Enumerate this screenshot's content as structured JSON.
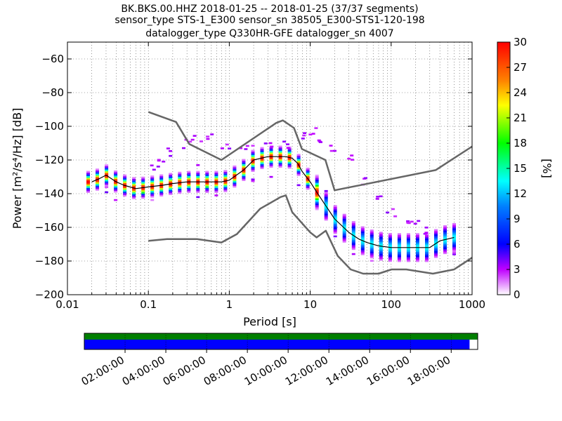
{
  "title_lines": [
    "BK.BKS.00.HHZ   2018-01-25 -- 2018-01-25  (37/37 segments)",
    "sensor_type STS-1_E300 sensor_sn 38505_E300-STS1-120-198",
    "datalogger_type Q330HR-GFE datalogger_sn 4007"
  ],
  "chart_data": {
    "type": "heatmap",
    "xlabel": "Period [s]",
    "ylabel": "Power [m²/s⁴/Hz] [dB]",
    "xscale": "log",
    "xlim": [
      0.01,
      1000
    ],
    "ylim": [
      -200,
      -50
    ],
    "grid": true,
    "x_ticks": [
      {
        "value": 0.01,
        "label": "0.01"
      },
      {
        "value": 0.1,
        "label": "0.1"
      },
      {
        "value": 1,
        "label": "1"
      },
      {
        "value": 10,
        "label": "10"
      },
      {
        "value": 100,
        "label": "100"
      },
      {
        "value": 1000,
        "label": "1000"
      }
    ],
    "y_ticks": [
      {
        "value": -60,
        "label": "−60"
      },
      {
        "value": -80,
        "label": "−80"
      },
      {
        "value": -100,
        "label": "−100"
      },
      {
        "value": -120,
        "label": "−120"
      },
      {
        "value": -140,
        "label": "−140"
      },
      {
        "value": -160,
        "label": "−160"
      },
      {
        "value": -180,
        "label": "−180"
      },
      {
        "value": -200,
        "label": "−200"
      }
    ],
    "colorbar": {
      "label": "[%]",
      "min": 0,
      "max": 30,
      "ticks": [
        "0",
        "3",
        "6",
        "9",
        "12",
        "15",
        "18",
        "21",
        "24",
        "27",
        "30"
      ]
    },
    "nlnm": {
      "name": "NLNM",
      "period": [
        0.1,
        0.17,
        0.4,
        0.8,
        1.24,
        2.4,
        4.3,
        5.0,
        6.0,
        10,
        12,
        15.6,
        21.9,
        31.6,
        45,
        70,
        101,
        154,
        328,
        600,
        1000
      ],
      "power": [
        -168,
        -167,
        -167,
        -169,
        -164,
        -149,
        -142,
        -141,
        -151,
        -163,
        -166,
        -162,
        -177,
        -185,
        -187.5,
        -187.5,
        -185,
        -185,
        -187.5,
        -185,
        -178
      ]
    },
    "nhnm": {
      "name": "NHNM",
      "period": [
        0.1,
        0.22,
        0.32,
        0.8,
        3.8,
        4.6,
        6.3,
        7.9,
        15.4,
        20,
        354.8,
        1000
      ],
      "power": [
        -91.5,
        -97.4,
        -110.5,
        -120,
        -98,
        -96.5,
        -101,
        -113.5,
        -120,
        -138,
        -126,
        -112
      ]
    },
    "mode": {
      "name": "mode",
      "period": [
        0.02,
        0.025,
        0.03,
        0.04,
        0.05,
        0.07,
        0.1,
        0.15,
        0.2,
        0.3,
        0.5,
        0.8,
        1,
        1.5,
        2,
        3,
        4,
        5,
        6,
        7,
        8,
        10,
        12,
        15,
        20,
        30,
        40,
        50,
        70,
        100,
        150,
        200,
        300,
        400,
        600
      ],
      "power": [
        -133,
        -131,
        -129,
        -133,
        -135,
        -137,
        -136,
        -135,
        -134,
        -133,
        -133,
        -133,
        -132,
        -126,
        -120,
        -118,
        -118,
        -118,
        -119,
        -122,
        -127,
        -133,
        -139,
        -146,
        -155,
        -163,
        -167,
        -169,
        -171,
        -172,
        -172,
        -172,
        -172,
        -168,
        -166
      ]
    },
    "time_axis": {
      "ticks": [
        "02:00:00",
        "04:00:00",
        "06:00:00",
        "08:00:00",
        "10:00:00",
        "12:00:00",
        "14:00:00",
        "16:00:00",
        "18:00:00"
      ],
      "tick_hours": [
        2,
        4,
        6,
        8,
        10,
        12,
        14,
        16,
        18
      ],
      "range_hours": [
        0,
        19.3
      ],
      "data_coverage_end_hour": 19.3,
      "psd_coverage_end_hour": 18.9,
      "colors": {
        "data": "#007f00",
        "psd": "#0000ff"
      }
    }
  }
}
